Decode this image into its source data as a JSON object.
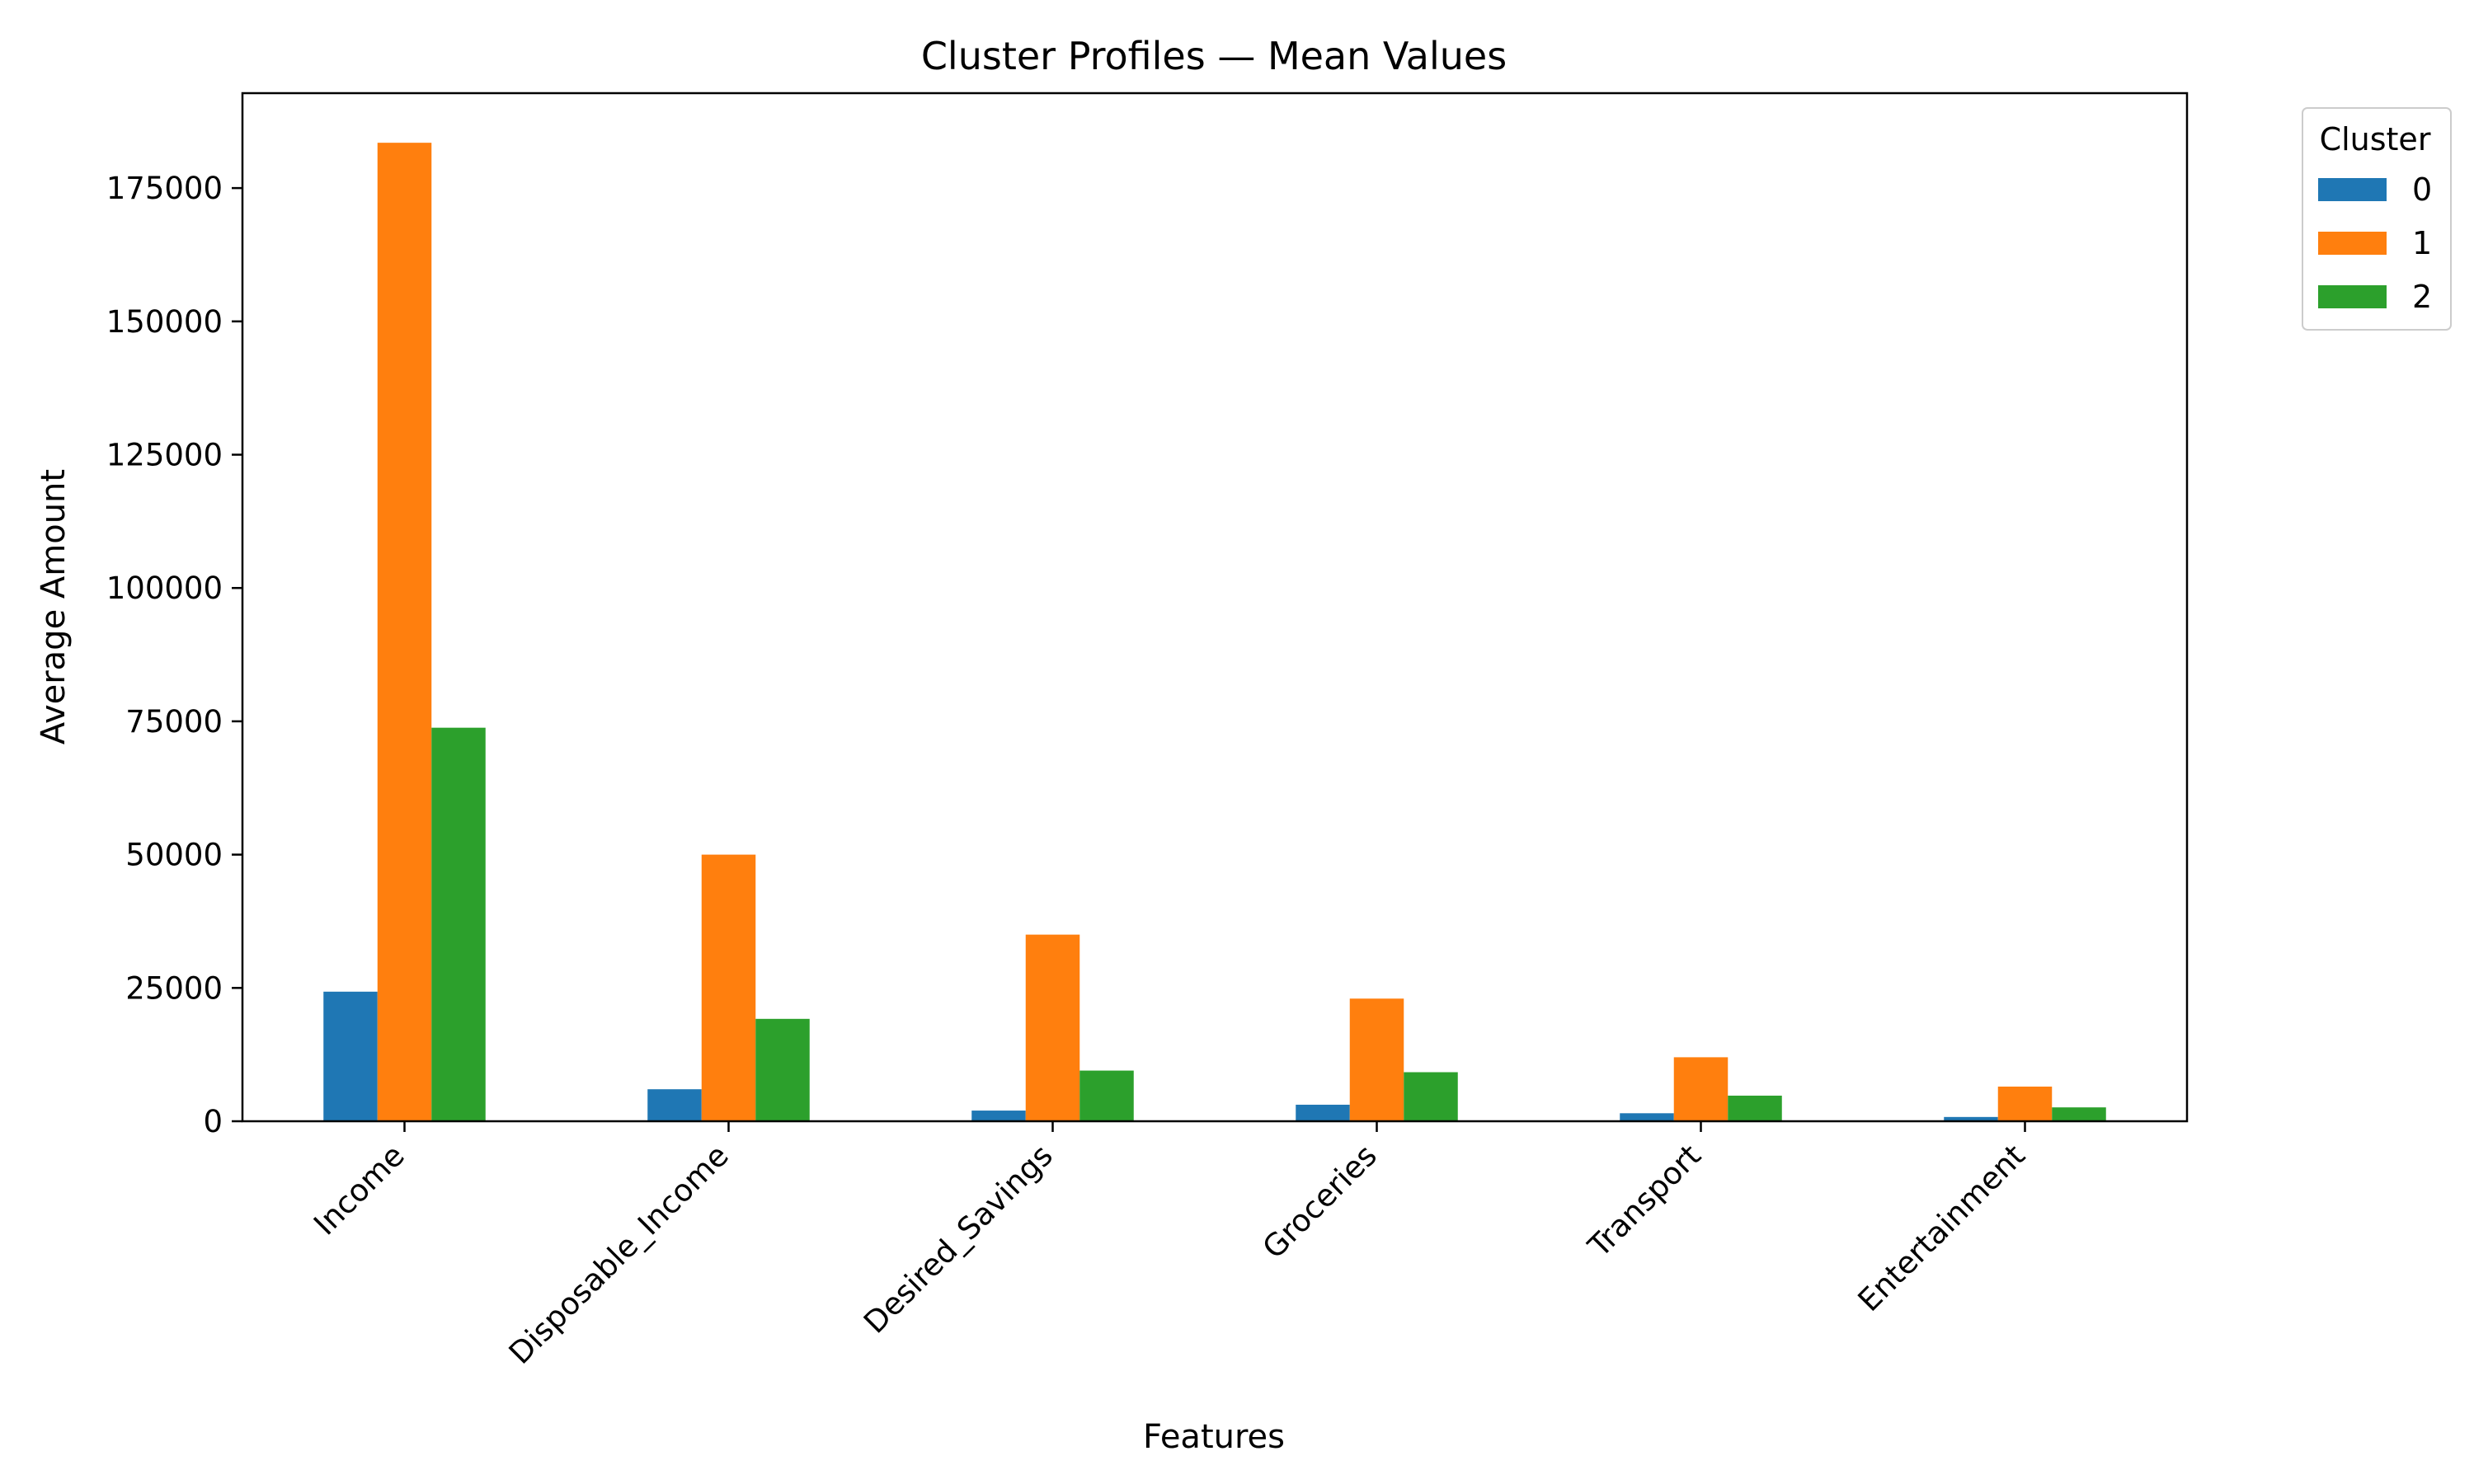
{
  "chart_data": {
    "type": "bar",
    "title": "Cluster Profiles — Mean Values",
    "xlabel": "Features",
    "ylabel": "Average Amount",
    "categories": [
      "Income",
      "Disposable_Income",
      "Desired_Savings",
      "Groceries",
      "Transport",
      "Entertainment"
    ],
    "series": [
      {
        "name": "0",
        "color": "#1f77b4",
        "values": [
          24300,
          6000,
          2000,
          3100,
          1500,
          800
        ]
      },
      {
        "name": "1",
        "color": "#ff7f0e",
        "values": [
          183500,
          50000,
          35000,
          23000,
          12000,
          6500
        ]
      },
      {
        "name": "2",
        "color": "#2ca02c",
        "values": [
          73800,
          19200,
          9500,
          9200,
          4800,
          2600
        ]
      }
    ],
    "ylim": [
      0,
      192800
    ],
    "yticks": [
      0,
      25000,
      50000,
      75000,
      100000,
      125000,
      150000,
      175000
    ],
    "ytick_labels": [
      "0",
      "25000",
      "50000",
      "75000",
      "100000",
      "125000",
      "150000",
      "175000"
    ],
    "xtick_rotation_deg": 45,
    "grid": false,
    "legend": {
      "title": "Cluster",
      "placement": "outside-top-right"
    }
  }
}
